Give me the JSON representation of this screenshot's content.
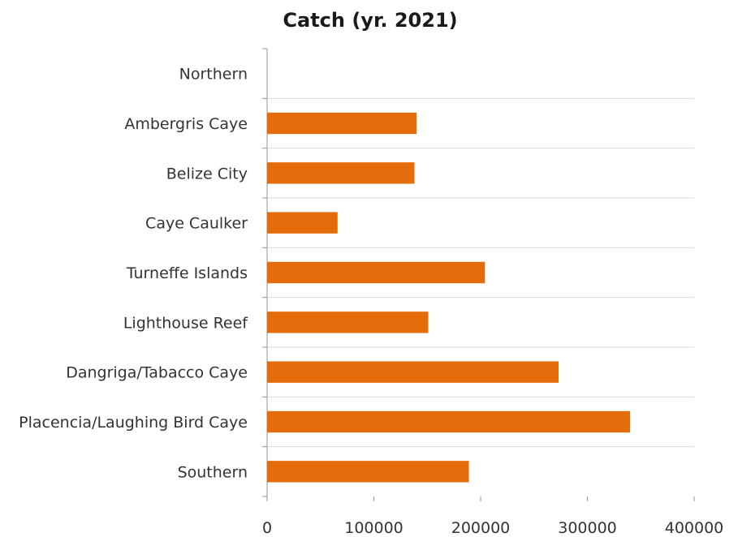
{
  "chart_data": {
    "type": "bar",
    "orientation": "horizontal",
    "title": "Catch (yr. 2021)",
    "xlabel": "",
    "ylabel": "",
    "categories": [
      "Northern",
      "Ambergris Caye",
      "Belize City",
      "Caye Caulker",
      "Turneffe Islands",
      "Lighthouse Reef",
      "Dangriga/Tabacco Caye",
      "Placencia/Laughing Bird Caye",
      "Southern"
    ],
    "values": [
      0,
      140000,
      138000,
      66000,
      204000,
      151000,
      273000,
      340000,
      189000
    ],
    "xlim": [
      0,
      400000
    ],
    "x_ticks": [
      "0",
      "100000",
      "200000",
      "300000",
      "400000"
    ],
    "grid": "horizontal lines between categories",
    "legend": "none",
    "bar_color": "#e46c0a"
  }
}
